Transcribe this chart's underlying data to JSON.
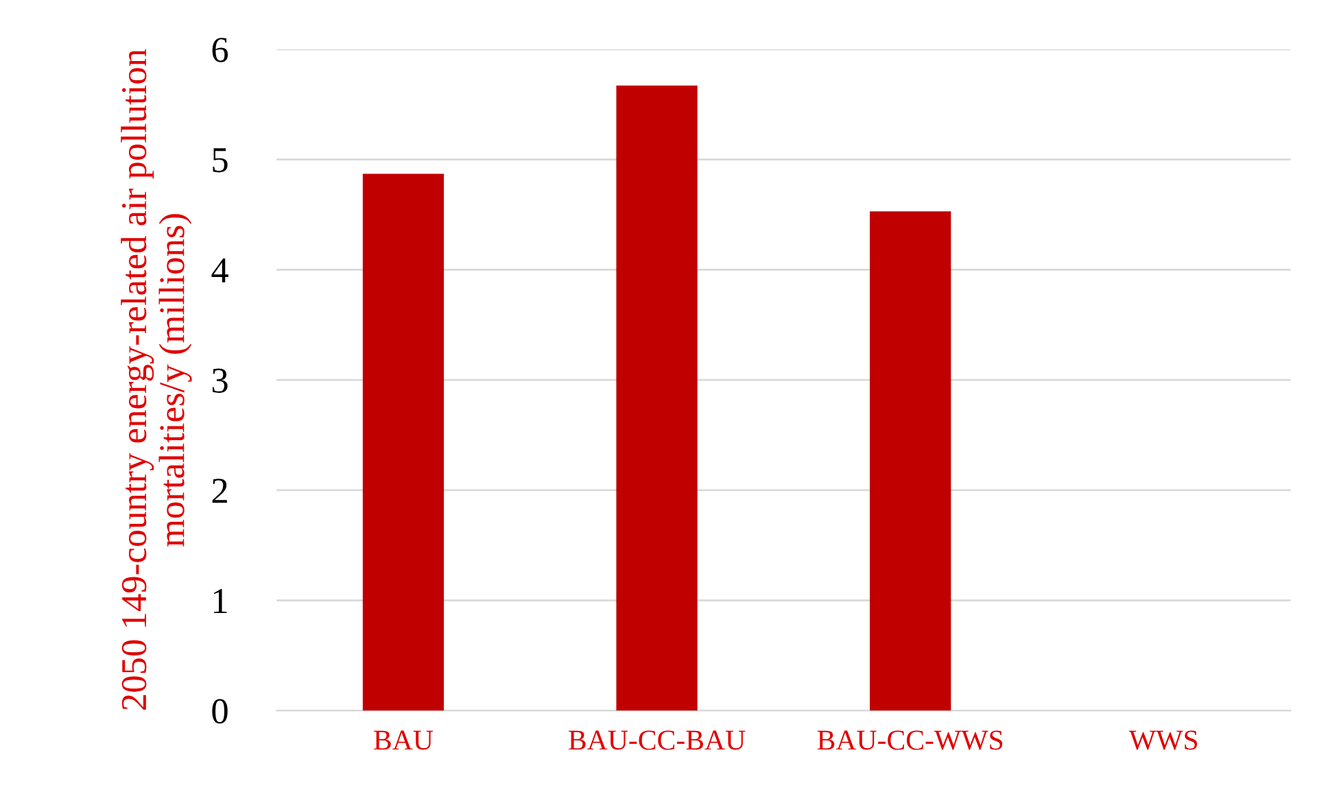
{
  "chart_data": {
    "type": "bar",
    "ylabel": "2050 149-country energy-related air pollution mortalities/y (millions)",
    "categories": [
      "BAU",
      "BAU-CC-BAU",
      "BAU-CC-WWS",
      "WWS"
    ],
    "values": [
      4.87,
      5.67,
      4.53,
      0
    ],
    "color": "#c00000",
    "ylim": [
      0,
      6
    ],
    "yticks": [
      0,
      1,
      2,
      3,
      4,
      5,
      6
    ],
    "grid": "y",
    "legend": false
  }
}
